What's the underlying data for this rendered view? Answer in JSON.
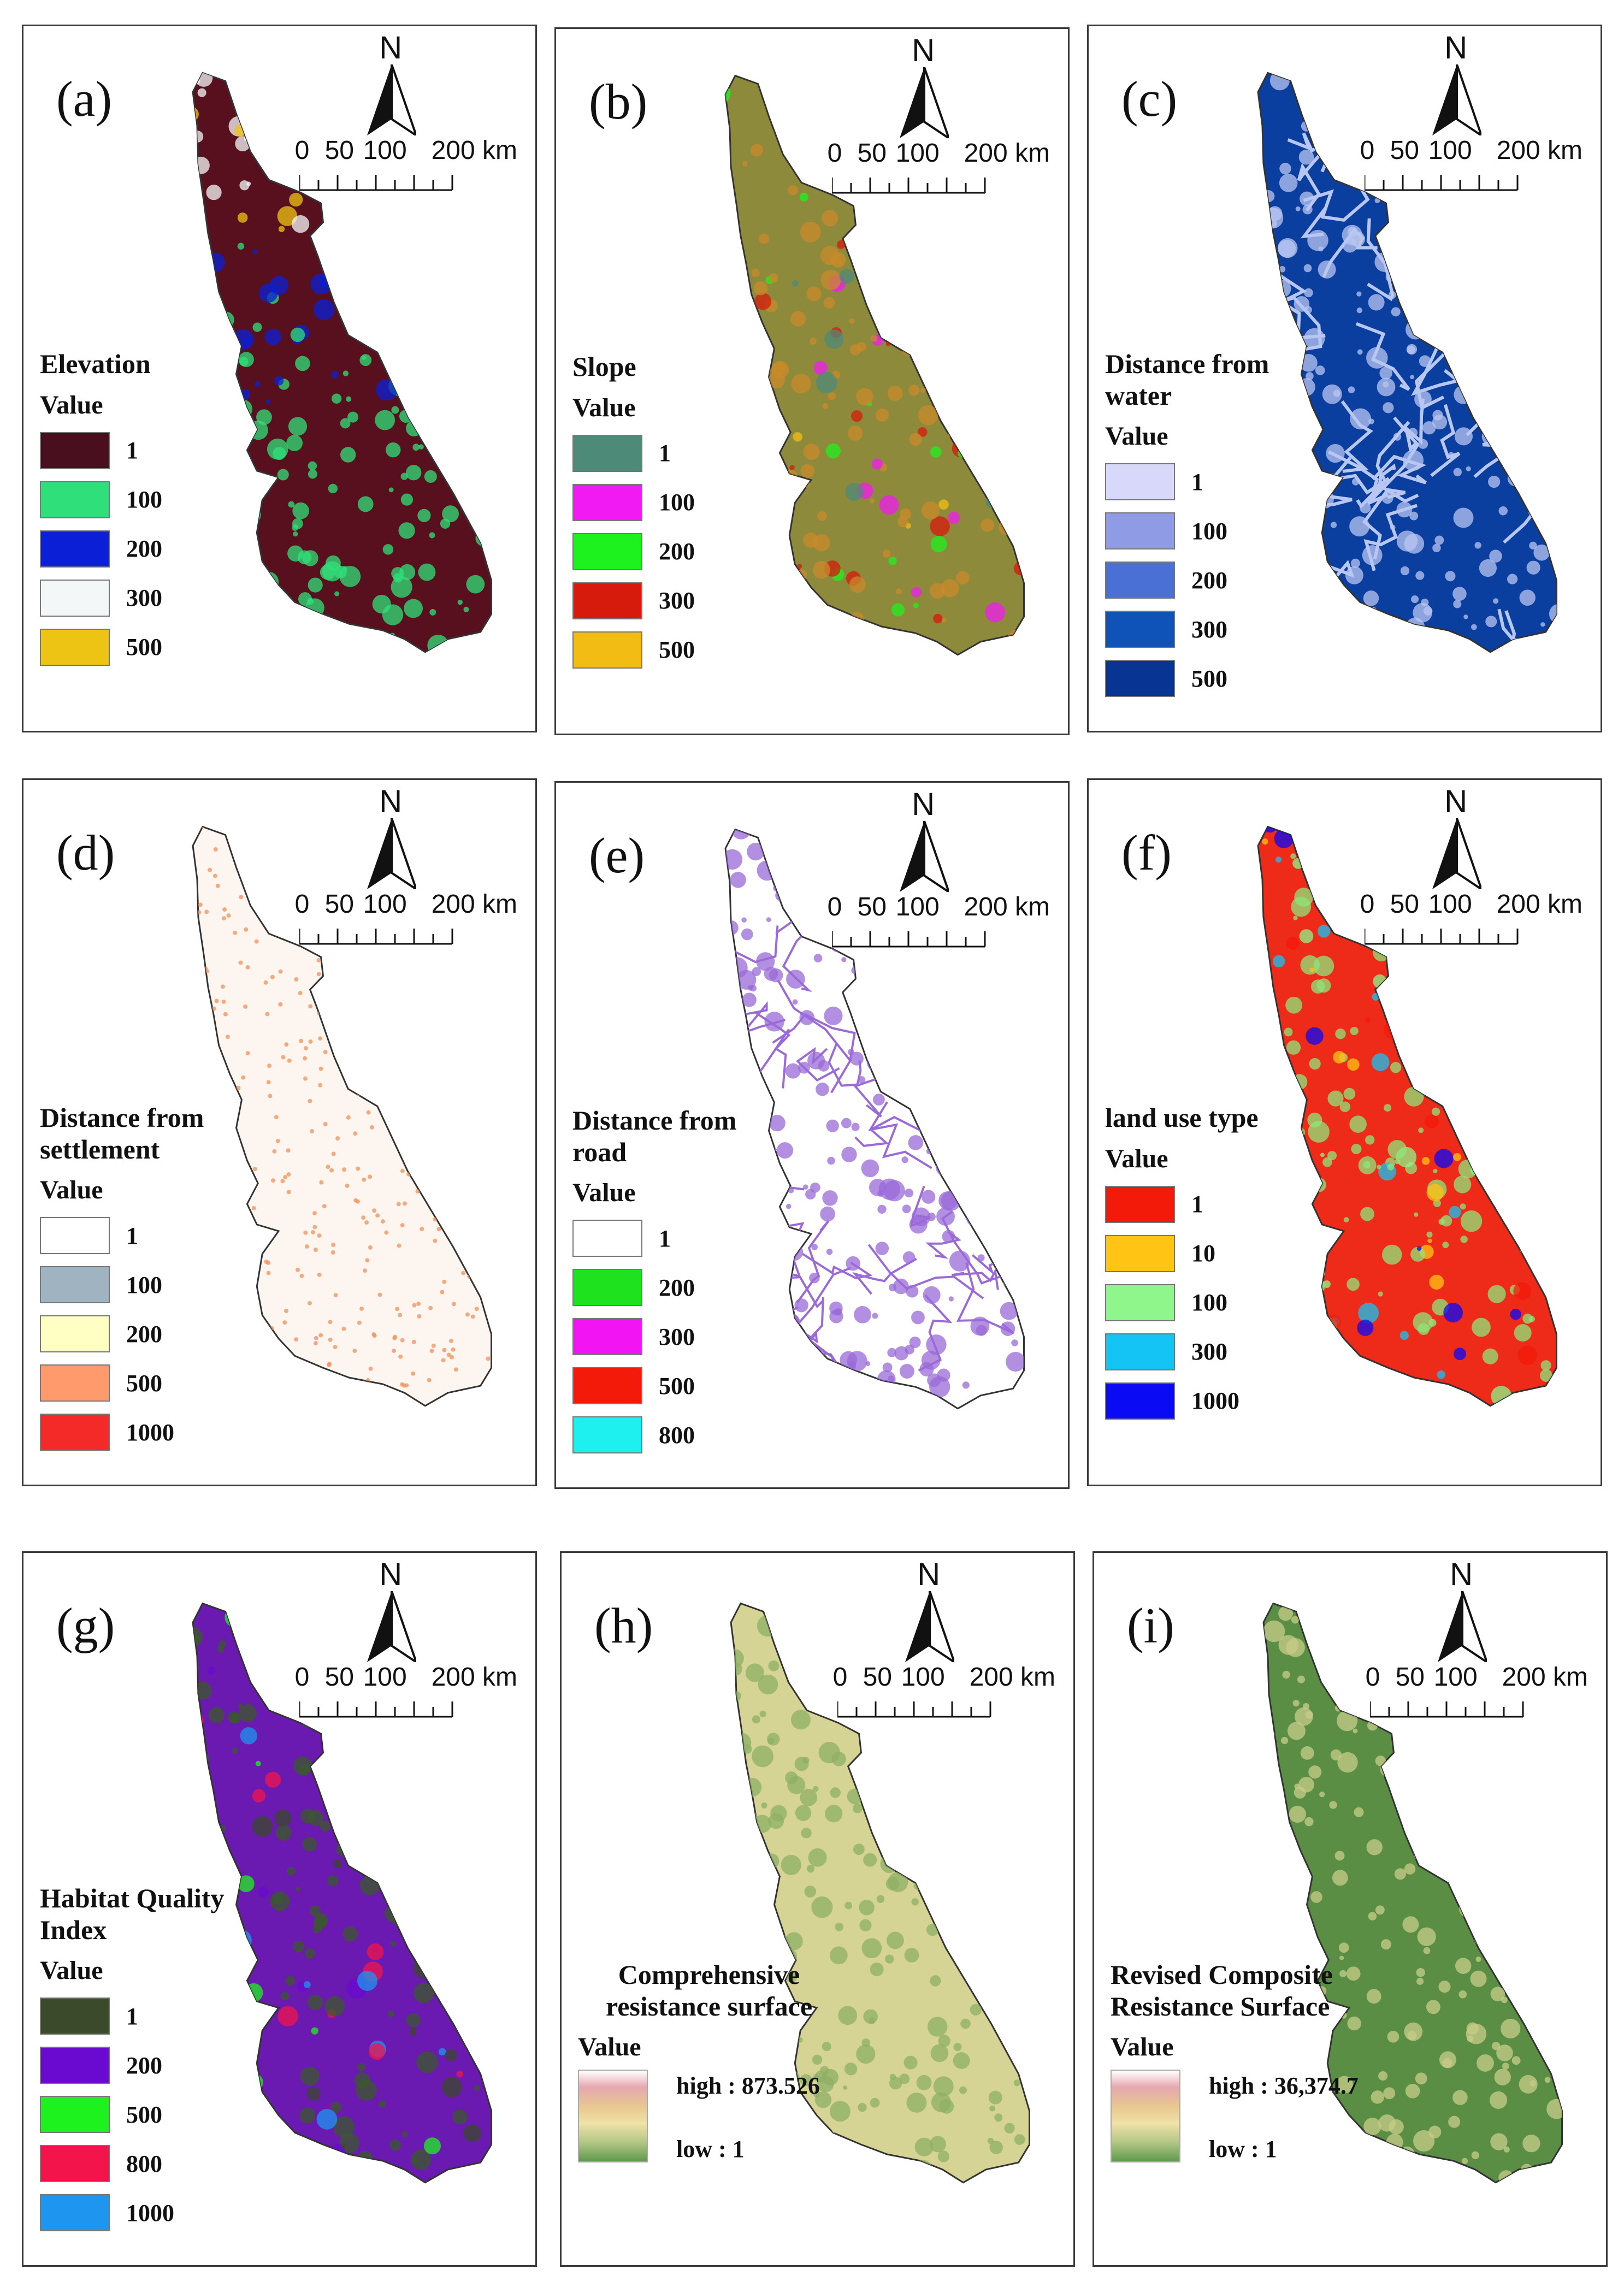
{
  "panels": [
    {
      "id": "a",
      "label": "(a)",
      "legend_title": "Elevation",
      "legend_sub": "Value",
      "fill": "#58101e",
      "accent": "#2fd67a",
      "legend": [
        {
          "value": "1",
          "color": "#4a0f1e"
        },
        {
          "value": "100",
          "color": "#2fe07a"
        },
        {
          "value": "200",
          "color": "#0a1fd6"
        },
        {
          "value": "300",
          "color": "#f4f7f8"
        },
        {
          "value": "500",
          "color": "#eec414"
        }
      ]
    },
    {
      "id": "b",
      "label": "(b)",
      "legend_title": "Slope",
      "legend_sub": "Value",
      "fill": "#8e8a3c",
      "accent": "#c98a2a",
      "legend": [
        {
          "value": "1",
          "color": "#4d8a78"
        },
        {
          "value": "100",
          "color": "#f21af2"
        },
        {
          "value": "200",
          "color": "#1ef21e"
        },
        {
          "value": "300",
          "color": "#d61a0c"
        },
        {
          "value": "500",
          "color": "#f2bc14"
        }
      ]
    },
    {
      "id": "c",
      "label": "(c)",
      "legend_title": "Distance from water",
      "legend_sub": "Value",
      "fill": "#0a3fa0",
      "accent": "#b8c6f2",
      "legend": [
        {
          "value": "1",
          "color": "#d8d8fb"
        },
        {
          "value": "100",
          "color": "#8f9be4"
        },
        {
          "value": "200",
          "color": "#4a70d6"
        },
        {
          "value": "300",
          "color": "#0f52b8"
        },
        {
          "value": "500",
          "color": "#083594"
        }
      ]
    },
    {
      "id": "d",
      "label": "(d)",
      "legend_title": "Distance from settlement",
      "legend_sub": "Value",
      "fill": "#fdf6f0",
      "accent": "#f0905a",
      "legend": [
        {
          "value": "1",
          "color": "#ffffff"
        },
        {
          "value": "100",
          "color": "#9fb4c0"
        },
        {
          "value": "200",
          "color": "#ffffc4"
        },
        {
          "value": "500",
          "color": "#ff9a6c"
        },
        {
          "value": "1000",
          "color": "#f42a28"
        }
      ]
    },
    {
      "id": "e",
      "label": "(e)",
      "legend_title": "Distance from road",
      "legend_sub": "Value",
      "fill": "#ffffff",
      "accent": "#9a6ad8",
      "legend": [
        {
          "value": "1",
          "color": "#ffffff"
        },
        {
          "value": "200",
          "color": "#1ee21e"
        },
        {
          "value": "300",
          "color": "#f214f2"
        },
        {
          "value": "500",
          "color": "#f41a0a"
        },
        {
          "value": "800",
          "color": "#1ef0f0"
        }
      ]
    },
    {
      "id": "f",
      "label": "(f)",
      "legend_title": "land use type",
      "legend_sub": "Value",
      "fill": "#ee2a18",
      "accent": "#8ee67a",
      "legend": [
        {
          "value": "1",
          "color": "#f41a0a"
        },
        {
          "value": "10",
          "color": "#ffc414"
        },
        {
          "value": "100",
          "color": "#8ef68a"
        },
        {
          "value": "300",
          "color": "#14c4f4"
        },
        {
          "value": "1000",
          "color": "#0a0af4"
        }
      ]
    },
    {
      "id": "g",
      "label": "(g)",
      "legend_title": "Habitat Quality Index",
      "legend_sub": "Value",
      "fill": "#6a1ab0",
      "accent": "#3a5a2a",
      "legend": [
        {
          "value": "1",
          "color": "#3a4a2a"
        },
        {
          "value": "200",
          "color": "#6a0ad0"
        },
        {
          "value": "500",
          "color": "#1ef21e"
        },
        {
          "value": "800",
          "color": "#f2144a"
        },
        {
          "value": "1000",
          "color": "#1e96f0"
        }
      ]
    },
    {
      "id": "h",
      "label": "(h)",
      "legend_title": "Comprehensive resistance surface",
      "legend_sub": "Value",
      "fill": "#d6d494",
      "accent": "#8eb064",
      "gradient": {
        "high": "high : 873.526",
        "low": "low : 1"
      }
    },
    {
      "id": "i",
      "label": "(i)",
      "legend_title": "Revised Composite Resistance Surface",
      "legend_sub": "Value",
      "fill": "#5a8e44",
      "accent": "#c8cc88",
      "gradient": {
        "high": "high : 36,374.7",
        "low": "low : 1"
      }
    }
  ],
  "north": "N",
  "scale": {
    "ticks": [
      "0",
      "50",
      "100",
      "200 km"
    ]
  }
}
